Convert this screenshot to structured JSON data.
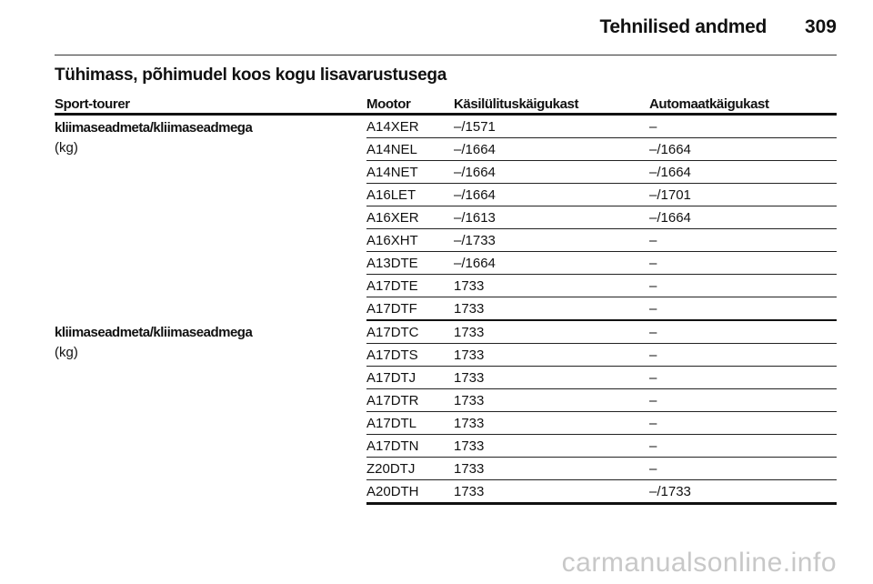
{
  "header": {
    "title": "Tehnilised andmed",
    "page_number": "309"
  },
  "section": {
    "title": "Tühimass, põhimudel koos kogu lisavarustusega"
  },
  "table": {
    "columns": [
      "Sport-tourer",
      "Mootor",
      "Käsilülituskäigukast",
      "Automaatkäigukast"
    ],
    "groups": [
      {
        "label": "kliimaseadmeta/kliimaseadmega",
        "unit": "(kg)",
        "rows": [
          {
            "engine": "A14XER",
            "manual": "–/1571",
            "automatic": "–"
          },
          {
            "engine": "A14NEL",
            "manual": "–/1664",
            "automatic": "–/1664"
          },
          {
            "engine": "A14NET",
            "manual": "–/1664",
            "automatic": "–/1664"
          },
          {
            "engine": "A16LET",
            "manual": "–/1664",
            "automatic": "–/1701"
          },
          {
            "engine": "A16XER",
            "manual": "–/1613",
            "automatic": "–/1664"
          },
          {
            "engine": "A16XHT",
            "manual": "–/1733",
            "automatic": "–"
          },
          {
            "engine": "A13DTE",
            "manual": "–/1664",
            "automatic": "–"
          },
          {
            "engine": "A17DTE",
            "manual": "1733",
            "automatic": "–"
          },
          {
            "engine": "A17DTF",
            "manual": "1733",
            "automatic": "–"
          }
        ]
      },
      {
        "label": "kliimaseadmeta/kliimaseadmega",
        "unit": "(kg)",
        "rows": [
          {
            "engine": "A17DTC",
            "manual": "1733",
            "automatic": "–"
          },
          {
            "engine": "A17DTS",
            "manual": "1733",
            "automatic": "–"
          },
          {
            "engine": "A17DTJ",
            "manual": "1733",
            "automatic": "–"
          },
          {
            "engine": "A17DTR",
            "manual": "1733",
            "automatic": "–"
          },
          {
            "engine": "A17DTL",
            "manual": "1733",
            "automatic": "–"
          },
          {
            "engine": "A17DTN",
            "manual": "1733",
            "automatic": "–"
          },
          {
            "engine": "Z20DTJ",
            "manual": "1733",
            "automatic": "–"
          },
          {
            "engine": "A20DTH",
            "manual": "1733",
            "automatic": "–/1733"
          }
        ]
      }
    ]
  },
  "watermark": "carmanualsonline.info"
}
